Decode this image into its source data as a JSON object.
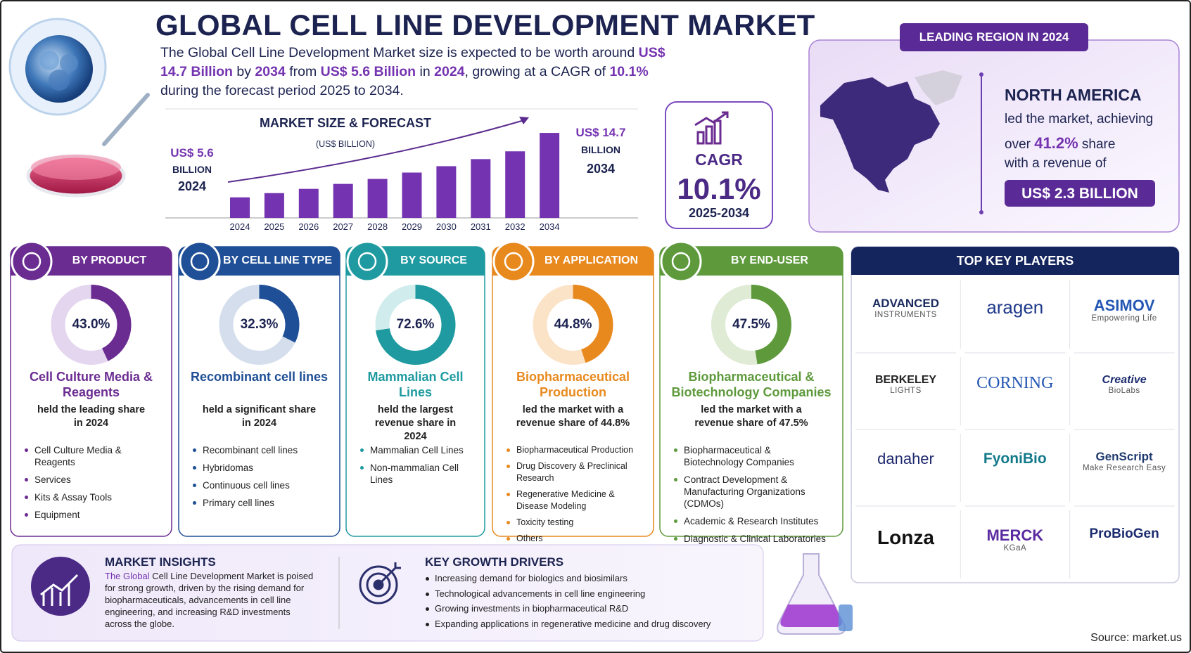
{
  "header": {
    "title": "GLOBAL CELL LINE DEVELOPMENT MARKET",
    "summary": [
      "The Global Cell Line Development Market size is expected to be worth around",
      "US$ 14.7 Billion",
      "by",
      "2034",
      "from",
      "US$ 5.6 Billion",
      "in",
      "2024",
      ", growing at a CAGR of",
      "10.1%",
      "during the forecast period 2025 to 2034."
    ]
  },
  "chart_data": {
    "type": "bar",
    "title": "MARKET SIZE & FORECAST",
    "subtitle": "(US$ BILLION)",
    "categories": [
      "2024",
      "2025",
      "2026",
      "2027",
      "2028",
      "2029",
      "2030",
      "2031",
      "2032",
      "2034"
    ],
    "values": [
      5.6,
      6.2,
      6.8,
      7.5,
      8.2,
      9.1,
      10.0,
      11.0,
      12.1,
      14.7
    ],
    "color": "#7433b0",
    "ylim": [
      2.7,
      15.5
    ],
    "annotations": {
      "start": [
        "US$ 5.6",
        "BILLION",
        "2024"
      ],
      "end": [
        "US$ 14.7",
        "BILLION",
        "2034"
      ]
    }
  },
  "cagr": {
    "label": "CAGR",
    "value": "10.1%",
    "period": "2025-2034"
  },
  "leading_region": {
    "badge": "LEADING REGION IN 2024",
    "region": "NORTH AMERICA",
    "line_1": "led the market, achieving",
    "line_2": [
      "over",
      "41.2%",
      "share"
    ],
    "line_3": "with a revenue of",
    "revenue": "US$ 2.3 BILLION"
  },
  "segments": [
    {
      "title": "BY PRODUCT",
      "color": "#6b2c91",
      "track": "#e4d6ef",
      "share": 43.0,
      "share_label": "43.0%",
      "leader": "Cell Culture Media & Reagents",
      "note": "held the leading share in 2024",
      "items": [
        "Cell Culture Media & Reagents",
        "Services",
        "Kits & Assay Tools",
        "Equipment"
      ]
    },
    {
      "title": "BY CELL LINE TYPE",
      "color": "#1f4f96",
      "track": "#d5deec",
      "share": 32.3,
      "share_label": "32.3%",
      "leader": "Recombinant cell lines",
      "note": "held a significant share in 2024",
      "items": [
        "Recombinant cell lines",
        "Hybridomas",
        "Continuous cell lines",
        "Primary cell lines"
      ]
    },
    {
      "title": "BY SOURCE",
      "color": "#1e9aa0",
      "track": "#d1ecec",
      "share": 72.6,
      "share_label": "72.6%",
      "leader": "Mammalian Cell Lines",
      "note": "held the largest revenue share in 2024",
      "items": [
        "Mammalian Cell Lines",
        "Non-mammalian Cell Lines"
      ]
    },
    {
      "title": "BY APPLICATION",
      "color": "#e8891e",
      "track": "#fbe3c8",
      "share": 44.8,
      "share_label": "44.8%",
      "leader": "Biopharmaceutical Production",
      "note": "led the market with a revenue share of 44.8%",
      "items": [
        "Biopharmaceutical Production",
        "Drug Discovery & Preclinical Research",
        "Regenerative Medicine & Disease Modeling",
        "Toxicity testing",
        "Others"
      ]
    },
    {
      "title": "BY END-USER",
      "color": "#5e9a3c",
      "track": "#dfebd5",
      "share": 47.5,
      "share_label": "47.5%",
      "leader": "Biopharmaceutical & Biotechnology Companies",
      "note": "led the market with a revenue share of 47.5%",
      "items": [
        "Biopharmaceutical & Biotechnology Companies",
        "Contract Development & Manufacturing Organizations (CDMOs)",
        "Academic & Research Institutes",
        "Diagnostic & Clinical Laboratories"
      ]
    }
  ],
  "key_players": {
    "title": "TOP KEY PLAYERS",
    "companies": [
      {
        "name": "ADVANCED",
        "sub": "INSTRUMENTS"
      },
      {
        "name": "aragen"
      },
      {
        "name": "ASIMOV",
        "sub": "Empowering Life"
      },
      {
        "name": "BERKELEY",
        "sub": "LIGHTS"
      },
      {
        "name": "CORNING"
      },
      {
        "name": "Creative",
        "sub": "BioLabs"
      },
      {
        "name": "danaher"
      },
      {
        "name": "FyoniBio"
      },
      {
        "name": "GenScript",
        "sub": "Make Research Easy"
      },
      {
        "name": "Lonza"
      },
      {
        "name": "MERCK",
        "sub": "KGaA"
      },
      {
        "name": "ProBioGen"
      }
    ]
  },
  "insights": {
    "title": "MARKET INSIGHTS",
    "text": [
      "The Global",
      "Cell Line Development Market is poised for strong growth, driven by the rising demand for biopharmaceuticals, advancements in cell line engineering, and increasing R&D investments across the globe."
    ]
  },
  "drivers": {
    "title": "KEY GROWTH DRIVERS",
    "items": [
      "Increasing demand for biologics and biosimilars",
      "Technological advancements in cell line engineering",
      "Growing investments in biopharmaceutical R&D",
      "Expanding applications in regenerative medicine and drug discovery"
    ]
  },
  "source": "Source: market.us"
}
